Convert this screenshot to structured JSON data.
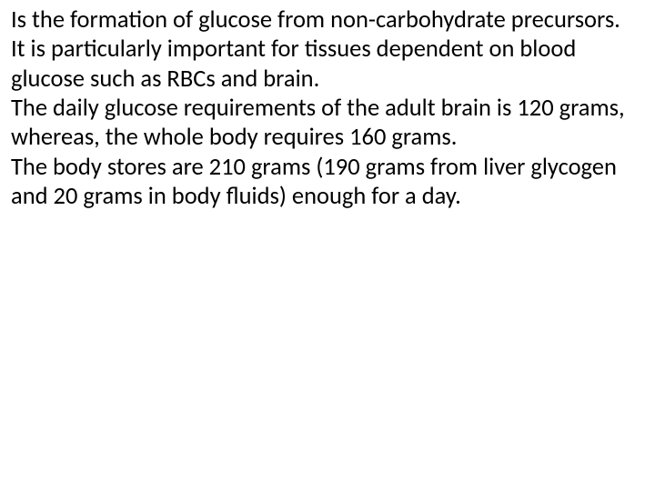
{
  "slide": {
    "text_color": "#000000",
    "background_color": "#ffffff",
    "font_size": 26.5,
    "font_family": "Calibri, Arial, sans-serif",
    "paragraphs": [
      "Is the formation of glucose from non-carbohydrate precursors.",
      "It is particularly important for tissues dependent on blood glucose such as RBCs and brain.",
      "The daily glucose requirements of the adult brain is 120 grams, whereas, the whole body requires 160 grams.",
      "The body stores are 210 grams (190 grams from liver glycogen and 20 grams in body fluids) enough for a day."
    ]
  }
}
